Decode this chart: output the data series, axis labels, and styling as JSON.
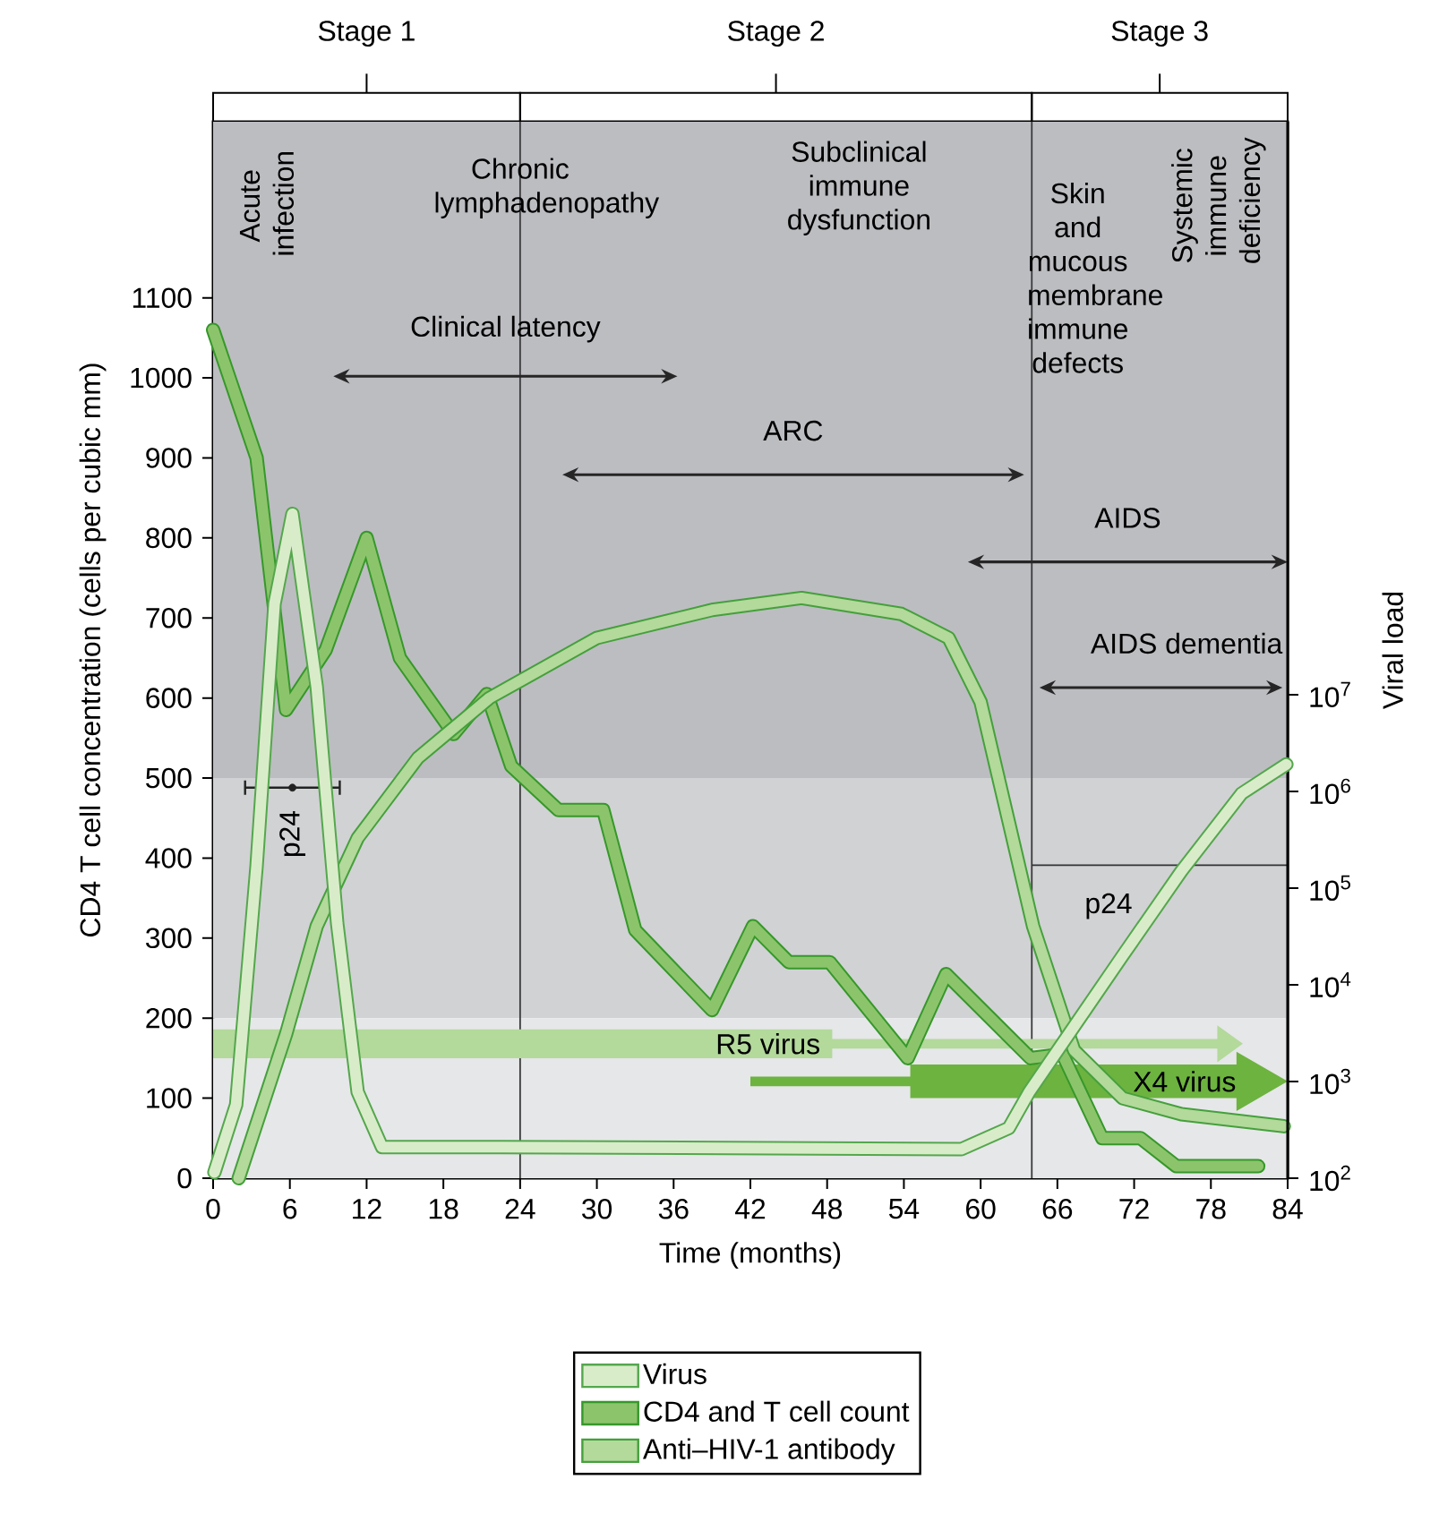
{
  "chart_data": {
    "type": "line",
    "xlabel": "Time (months)",
    "ylabel": "CD4 T cell concentration (cells per cubic mm)",
    "y2label": "Viral load",
    "xlim": [
      0,
      84
    ],
    "xticks": [
      0,
      6,
      12,
      18,
      24,
      30,
      36,
      42,
      48,
      54,
      60,
      66,
      72,
      78,
      84
    ],
    "ylim": [
      0,
      1320
    ],
    "yticks": [
      0,
      100,
      200,
      300,
      400,
      500,
      600,
      700,
      800,
      900,
      1000,
      1100
    ],
    "y2lim": [
      100,
      8400000000000.0
    ],
    "y2ticks": [
      {
        "value": 100,
        "label": "10$^{2}$"
      },
      {
        "value": 1000,
        "label": "10$^{3}$"
      },
      {
        "value": 10000,
        "label": "10$^{4}$"
      },
      {
        "value": 100000,
        "label": "10$^{5}$"
      },
      {
        "value": 1000000,
        "label": "10$^{6}$"
      },
      {
        "value": 10000000,
        "label": "10$^{7}$"
      }
    ],
    "log": "y2",
    "legend": "bottom",
    "series": [
      {
        "name": "Virus",
        "color": "#d9ecc9",
        "axis": "y2",
        "x": [
          0.1,
          1.8,
          3.4,
          4.8,
          6.2,
          8.1,
          9.7,
          11.3,
          13.2,
          22.5,
          58.5,
          62.2,
          63.8,
          67.3,
          71.1,
          75.7,
          80.4,
          83.9
        ],
        "values": [
          115,
          575,
          170000,
          87000000,
          740000000,
          12000000,
          43000,
          780,
          210,
          210,
          200,
          330,
          780,
          3700,
          20000,
          150000,
          950000,
          1900000
        ]
      },
      {
        "name": "CD4 and T cell count",
        "color": "#8cc46c",
        "x": [
          0,
          3.4,
          5.7,
          8.8,
          12,
          14.6,
          18.8,
          21.4,
          23.3,
          27,
          30.5,
          33,
          39,
          42.2,
          45,
          48.2,
          54.3,
          57.3,
          63.9,
          66.4,
          69.5,
          72.5,
          75.3,
          81.7
        ],
        "values": [
          1060,
          900,
          585,
          660,
          800,
          650,
          555,
          605,
          515,
          460,
          460,
          310,
          210,
          315,
          270,
          270,
          150,
          255,
          150,
          155,
          50,
          50,
          15,
          15
        ]
      },
      {
        "name": "Anti–HIV-1 antibody",
        "color": "#b3d99b",
        "x": [
          2,
          5.7,
          8.1,
          11.3,
          16,
          21.6,
          30,
          39,
          46,
          53.8,
          57.5,
          60,
          62.2,
          64.1,
          67.3,
          71.1,
          75.7,
          83.7
        ],
        "values": [
          0,
          180,
          315,
          425,
          525,
          600,
          675,
          710,
          725,
          705,
          675,
          595,
          445,
          315,
          160,
          100,
          80,
          65
        ]
      },
      {
        "type": "scatter",
        "color": "#222222",
        "x": [
          6.2
        ],
        "values": [
          488
        ],
        "xerrors": [
          [
            2.5,
            9.9
          ]
        ]
      },
      {
        "type": "line",
        "color": "#333333",
        "x": [
          64,
          84
        ],
        "values": [
          391,
          391
        ]
      }
    ],
    "bands": [
      {
        "axis": "y",
        "from": 500,
        "to": 1320,
        "color": "#bcbdc1"
      },
      {
        "axis": "y",
        "from": 200,
        "to": 500,
        "color": "#d1d2d4"
      },
      {
        "axis": "y",
        "from": 0,
        "to": 200,
        "color": "#e6e7e9"
      }
    ],
    "ref_lines": [
      {
        "axis": "x",
        "value": 24,
        "color": "#3a3a3a"
      },
      {
        "axis": "x",
        "value": 64,
        "color": "#3a3a3a"
      }
    ],
    "annotations": [
      "Stage 1",
      "Stage 2",
      "Stage 3",
      "Acute infection",
      "Chronic lymphadenopathy",
      "Subclinical immune dysfunction",
      "Skin and mucous membrane immune defects",
      "Systemic immune deficiency",
      "Clinical latency",
      "ARC",
      "AIDS",
      "AIDS dementia",
      "p24",
      "p24",
      "R5 virus",
      "X4 virus"
    ]
  }
}
